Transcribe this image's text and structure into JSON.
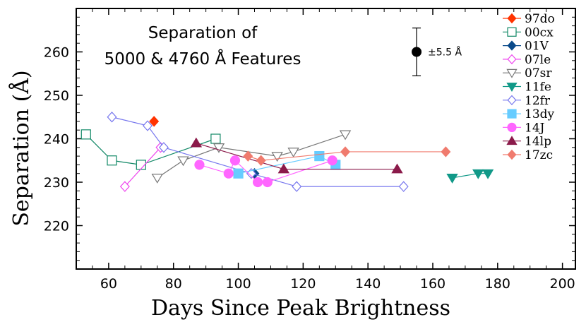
{
  "chart_data": {
    "type": "line",
    "title_lines": [
      "Separation of",
      "5000 & 4760 Å Features"
    ],
    "xlabel": "Days Since Peak Brightness",
    "ylabel": "Separation (Å)",
    "xlim": [
      50,
      204
    ],
    "ylim": [
      210,
      270
    ],
    "xticks": [
      60,
      80,
      100,
      120,
      140,
      160,
      180,
      200
    ],
    "yticks": [
      220,
      230,
      240,
      250,
      260
    ],
    "xtick_labels": [
      "60",
      "80",
      "100",
      "120",
      "140",
      "160",
      "180",
      "200"
    ],
    "ytick_labels": [
      "220",
      "230",
      "240",
      "250",
      "260"
    ],
    "grid": false,
    "legend_position": "right",
    "error_bar": {
      "x": 155,
      "y": 260,
      "err": 5.5,
      "label": "±5.5 Å"
    },
    "series": [
      {
        "name": "97do",
        "color": "#ff3300",
        "marker": "diamond",
        "fill": "filled",
        "x": [
          74
        ],
        "y": [
          244
        ]
      },
      {
        "name": "00cx",
        "color": "#118866",
        "marker": "square",
        "fill": "open",
        "x": [
          53,
          61,
          70,
          93
        ],
        "y": [
          241,
          235,
          234,
          240
        ]
      },
      {
        "name": "01V",
        "color": "#0a4a8a",
        "marker": "diamond",
        "fill": "filled",
        "x": [
          105
        ],
        "y": [
          232
        ]
      },
      {
        "name": "07le",
        "color": "#ee44ee",
        "marker": "diamond",
        "fill": "open",
        "x": [
          65,
          76
        ],
        "y": [
          229,
          238
        ]
      },
      {
        "name": "07sr",
        "color": "#777777",
        "marker": "triangle-down",
        "fill": "open",
        "x": [
          75,
          83,
          94,
          112,
          117,
          133
        ],
        "y": [
          231,
          235,
          238,
          236,
          237,
          241
        ]
      },
      {
        "name": "11fe",
        "color": "#119988",
        "marker": "triangle-down",
        "fill": "filled",
        "x": [
          166,
          174,
          177
        ],
        "y": [
          231,
          232,
          232
        ]
      },
      {
        "name": "12fr",
        "color": "#7777ee",
        "marker": "diamond",
        "fill": "open",
        "x": [
          61,
          72,
          77,
          104,
          118,
          151
        ],
        "y": [
          245,
          243,
          238,
          232,
          229,
          229
        ]
      },
      {
        "name": "13dy",
        "color": "#66ccff",
        "marker": "square",
        "fill": "filled",
        "x": [
          100,
          125,
          130
        ],
        "y": [
          232,
          236,
          234
        ]
      },
      {
        "name": "14J",
        "color": "#ff66ff",
        "marker": "circle",
        "fill": "filled",
        "x": [
          88,
          97,
          99,
          106,
          109,
          129
        ],
        "y": [
          234,
          232,
          235,
          230,
          230,
          235
        ]
      },
      {
        "name": "14lp",
        "color": "#8b1a4a",
        "marker": "triangle-up",
        "fill": "filled",
        "x": [
          87,
          114,
          149
        ],
        "y": [
          239,
          233,
          233
        ]
      },
      {
        "name": "17zc",
        "color": "#f07b6e",
        "marker": "diamond",
        "fill": "filled",
        "x": [
          103,
          107,
          133,
          164
        ],
        "y": [
          236,
          235,
          237,
          237
        ]
      }
    ]
  }
}
